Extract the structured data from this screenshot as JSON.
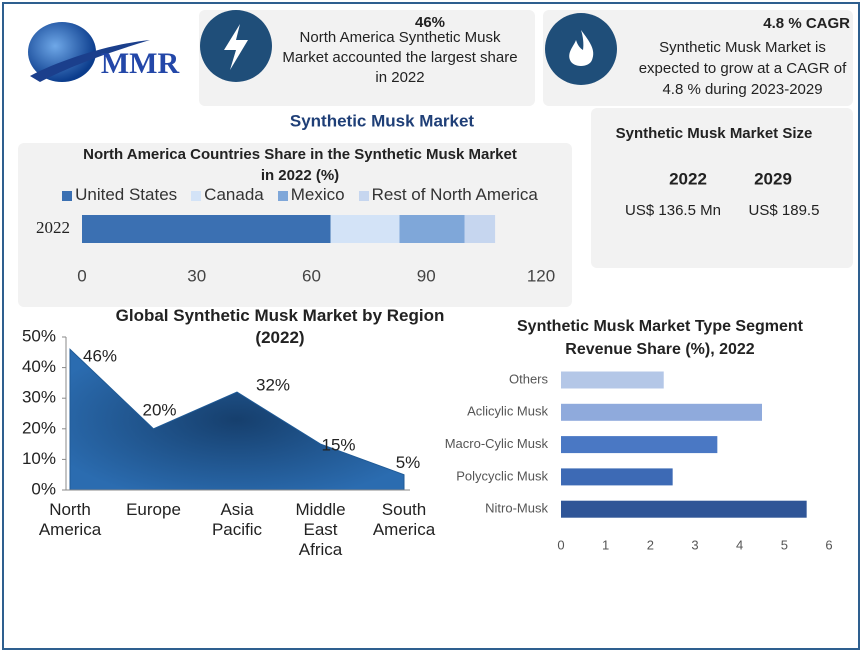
{
  "logo": "MMR",
  "callouts": [
    {
      "title": "46%",
      "text": "North America Synthetic Musk Market accounted the largest share in 2022"
    },
    {
      "title": "4.8 % CAGR",
      "text": "Synthetic Musk Market is expected to grow at a CAGR of 4.8 % during 2023-2029"
    }
  ],
  "main_title": "Synthetic Musk Market",
  "market_size": {
    "title": "Synthetic Musk Market Size",
    "items": [
      {
        "year": "2022",
        "value": "US$ 136.5 Mn"
      },
      {
        "year": "2029",
        "value": "US$ 189.5"
      }
    ]
  },
  "chart_data": [
    {
      "type": "stacked_hbar",
      "title": "North America Countries Share in the Synthetic Musk Market in 2022 (%)",
      "categories": [
        "2022"
      ],
      "series": [
        {
          "name": "United States",
          "color": "#3b70b2",
          "values": [
            65
          ]
        },
        {
          "name": "Canada",
          "color": "#d3e3f7",
          "values": [
            18
          ]
        },
        {
          "name": "Mexico",
          "color": "#7fa7d9",
          "values": [
            17
          ]
        },
        {
          "name": "Rest of North America",
          "color": "#c6d6ef",
          "values": [
            8
          ]
        }
      ],
      "xlim": [
        0,
        120
      ],
      "xticks": [
        0,
        30,
        60,
        90,
        120
      ]
    },
    {
      "type": "area",
      "title": "Global Synthetic Musk Market by Region (2022)",
      "categories": [
        "North America",
        "Europe",
        "Asia Pacific",
        "Middle East Africa",
        "South America"
      ],
      "values": [
        46,
        20,
        32,
        15,
        5
      ],
      "value_labels": [
        "46%",
        "20%",
        "32%",
        "15%",
        "5%"
      ],
      "color": "#1f5a96",
      "ylim": [
        0,
        50
      ],
      "yticks": [
        {
          "value": 0,
          "label": "0%"
        },
        {
          "value": 10,
          "label": "10%"
        },
        {
          "value": 20,
          "label": "20%"
        },
        {
          "value": 30,
          "label": "30%"
        },
        {
          "value": 40,
          "label": "40%"
        },
        {
          "value": 50,
          "label": "50%"
        }
      ]
    },
    {
      "type": "hbar",
      "title": "Synthetic Musk Market Type Segment Revenue Share (%), 2022",
      "categories": [
        "Others",
        "Aclicylic Musk",
        "Macro-Cylic Musk",
        "Polycyclic Musk",
        "Nitro-Musk"
      ],
      "values": [
        2.3,
        4.5,
        3.5,
        2.5,
        5.5
      ],
      "colors": [
        "#b4c7e7",
        "#8faadc",
        "#4a78c4",
        "#3d6ab5",
        "#2f5597"
      ],
      "xlim": [
        0,
        6
      ],
      "xticks": [
        0,
        1,
        2,
        3,
        4,
        5,
        6
      ]
    }
  ]
}
